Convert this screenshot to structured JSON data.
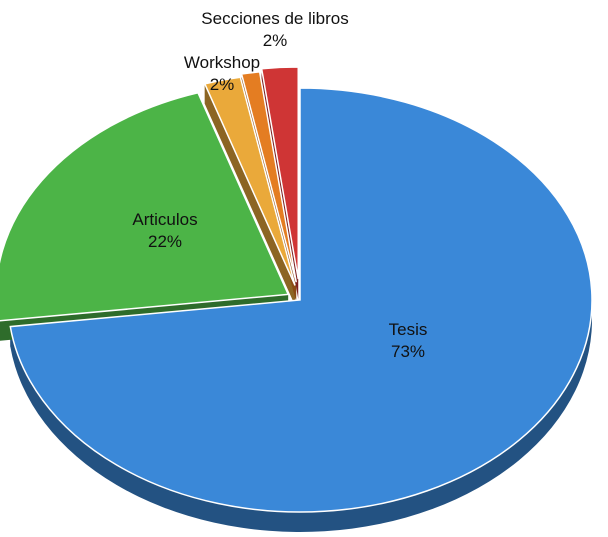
{
  "chart_data": {
    "type": "pie",
    "categories": [
      "Tesis",
      "Articulos",
      "Workshop",
      null,
      "Secciones de libros"
    ],
    "values": [
      73,
      22,
      2,
      1,
      2
    ],
    "value_labels": [
      "73%",
      "22%",
      "2%",
      null,
      "2%"
    ],
    "colors": [
      "#3a88d8",
      "#4cb447",
      "#eaa93a",
      "#e47d22",
      "#cf3535"
    ]
  }
}
